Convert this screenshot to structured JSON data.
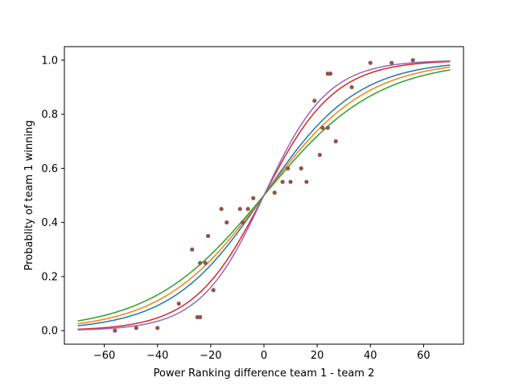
{
  "chart_data": {
    "type": "line",
    "title": "",
    "xlabel": "Power Ranking difference team 1 - team 2",
    "ylabel": "Probablity of team 1 winning",
    "xlim": [
      -75,
      75
    ],
    "ylim": [
      -0.05,
      1.05
    ],
    "xticks": [
      -60,
      -40,
      -20,
      0,
      20,
      40,
      60
    ],
    "xtick_labels": [
      "−60",
      "−40",
      "−20",
      "0",
      "20",
      "40",
      "60"
    ],
    "yticks": [
      0.0,
      0.2,
      0.4,
      0.6,
      0.8,
      1.0
    ],
    "ytick_labels": [
      "0.0",
      "0.2",
      "0.4",
      "0.6",
      "0.8",
      "1.0"
    ],
    "grid": false,
    "curve_x_range": [
      -70,
      70
    ],
    "series": [
      {
        "kind": "logistic",
        "k": 0.057,
        "color": "#1f77b4"
      },
      {
        "kind": "logistic",
        "k": 0.052,
        "color": "#ff7f0e"
      },
      {
        "kind": "logistic",
        "k": 0.047,
        "color": "#2ca02c"
      },
      {
        "kind": "logistic",
        "k": 0.075,
        "color": "#d62728"
      },
      {
        "kind": "logistic",
        "k": 0.083,
        "color": "#9467bd"
      }
    ],
    "scatter": {
      "color": "#8c564b",
      "points": [
        {
          "x": -56,
          "y": 0.0
        },
        {
          "x": -48,
          "y": 0.01
        },
        {
          "x": -40,
          "y": 0.01
        },
        {
          "x": -32,
          "y": 0.1
        },
        {
          "x": -27,
          "y": 0.3
        },
        {
          "x": -25,
          "y": 0.05
        },
        {
          "x": -24,
          "y": 0.05
        },
        {
          "x": -24,
          "y": 0.25
        },
        {
          "x": -22,
          "y": 0.25
        },
        {
          "x": -21,
          "y": 0.35
        },
        {
          "x": -19,
          "y": 0.15
        },
        {
          "x": -16,
          "y": 0.45
        },
        {
          "x": -14,
          "y": 0.4
        },
        {
          "x": -9,
          "y": 0.45
        },
        {
          "x": -8,
          "y": 0.4
        },
        {
          "x": -6,
          "y": 0.45
        },
        {
          "x": -4,
          "y": 0.49
        },
        {
          "x": 4,
          "y": 0.51
        },
        {
          "x": 7,
          "y": 0.55
        },
        {
          "x": 9,
          "y": 0.6
        },
        {
          "x": 10,
          "y": 0.55
        },
        {
          "x": 14,
          "y": 0.6
        },
        {
          "x": 16,
          "y": 0.55
        },
        {
          "x": 19,
          "y": 0.85
        },
        {
          "x": 21,
          "y": 0.65
        },
        {
          "x": 22,
          "y": 0.75
        },
        {
          "x": 24,
          "y": 0.75
        },
        {
          "x": 24,
          "y": 0.95
        },
        {
          "x": 25,
          "y": 0.95
        },
        {
          "x": 27,
          "y": 0.7
        },
        {
          "x": 33,
          "y": 0.9
        },
        {
          "x": 40,
          "y": 0.99
        },
        {
          "x": 48,
          "y": 0.99
        },
        {
          "x": 56,
          "y": 1.0
        }
      ]
    }
  }
}
